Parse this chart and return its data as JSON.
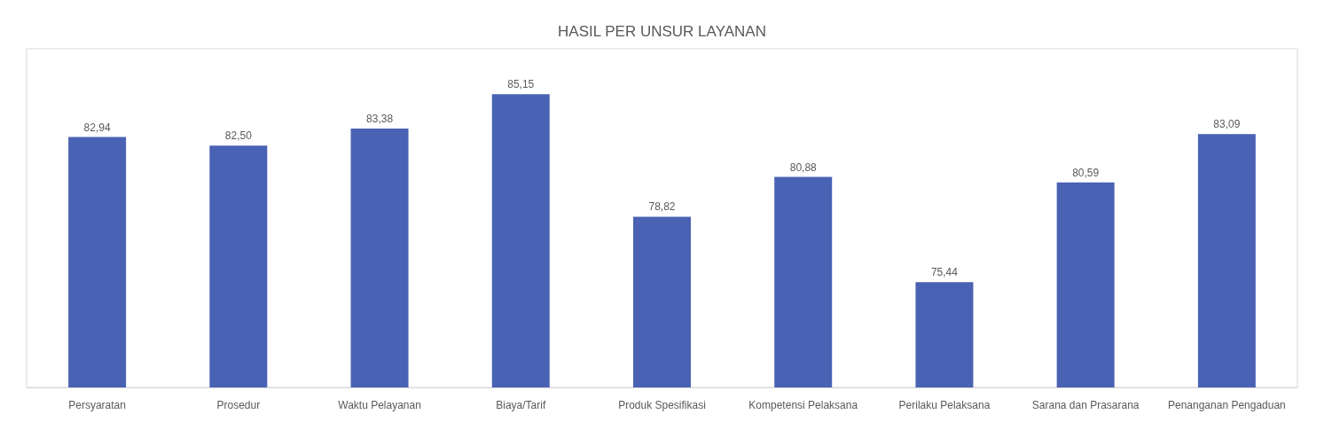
{
  "chart_data": {
    "type": "bar",
    "title": "HASIL PER UNSUR LAYANAN",
    "categories": [
      "Persyaratan",
      "Prosedur",
      "Waktu Pelayanan",
      "Biaya/Tarif",
      "Produk Spesifikasi",
      "Kompetensi Pelaksana",
      "Perilaku Pelaksana",
      "Sarana dan Prasarana",
      "Penanganan Pengaduan"
    ],
    "values": [
      82.94,
      82.5,
      83.38,
      85.15,
      78.82,
      80.88,
      75.44,
      80.59,
      83.09
    ],
    "value_labels": [
      "82,94",
      "82,50",
      "83,38",
      "85,15",
      "78,82",
      "80,88",
      "75,44",
      "80,59",
      "83,09"
    ],
    "color": "#4a62b4",
    "ylim": [
      70,
      87.5
    ],
    "tick_labels": "x"
  }
}
